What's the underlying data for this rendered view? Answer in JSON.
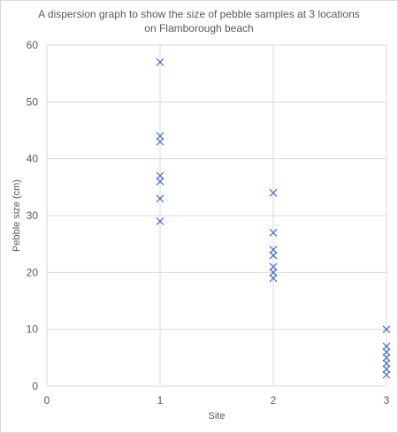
{
  "chart_data": {
    "type": "scatter",
    "title_lines": [
      "A dispersion  graph to show the size of pebble samples at 3 locations",
      "on Flamborough  beach"
    ],
    "xlabel": "Site",
    "ylabel": "Pebble size (cm)",
    "xlim": [
      0,
      3
    ],
    "ylim": [
      0,
      60
    ],
    "x_ticks": [
      "0",
      "1",
      "2",
      "3"
    ],
    "y_ticks": [
      "0",
      "10",
      "20",
      "30",
      "40",
      "50",
      "60"
    ],
    "grid": true,
    "marker": "x",
    "marker_color": "#4472C4",
    "series": [
      {
        "points": [
          [
            1,
            57
          ],
          [
            1,
            44
          ],
          [
            1,
            43
          ],
          [
            1,
            37
          ],
          [
            1,
            36
          ],
          [
            1,
            33
          ],
          [
            1,
            29
          ],
          [
            2,
            34
          ],
          [
            2,
            27
          ],
          [
            2,
            24
          ],
          [
            2,
            23
          ],
          [
            2,
            21
          ],
          [
            2,
            20
          ],
          [
            2,
            19
          ],
          [
            3,
            10
          ],
          [
            3,
            7
          ],
          [
            3,
            6
          ],
          [
            3,
            5
          ],
          [
            3,
            4
          ],
          [
            3,
            3
          ],
          [
            3,
            2
          ]
        ]
      }
    ]
  }
}
